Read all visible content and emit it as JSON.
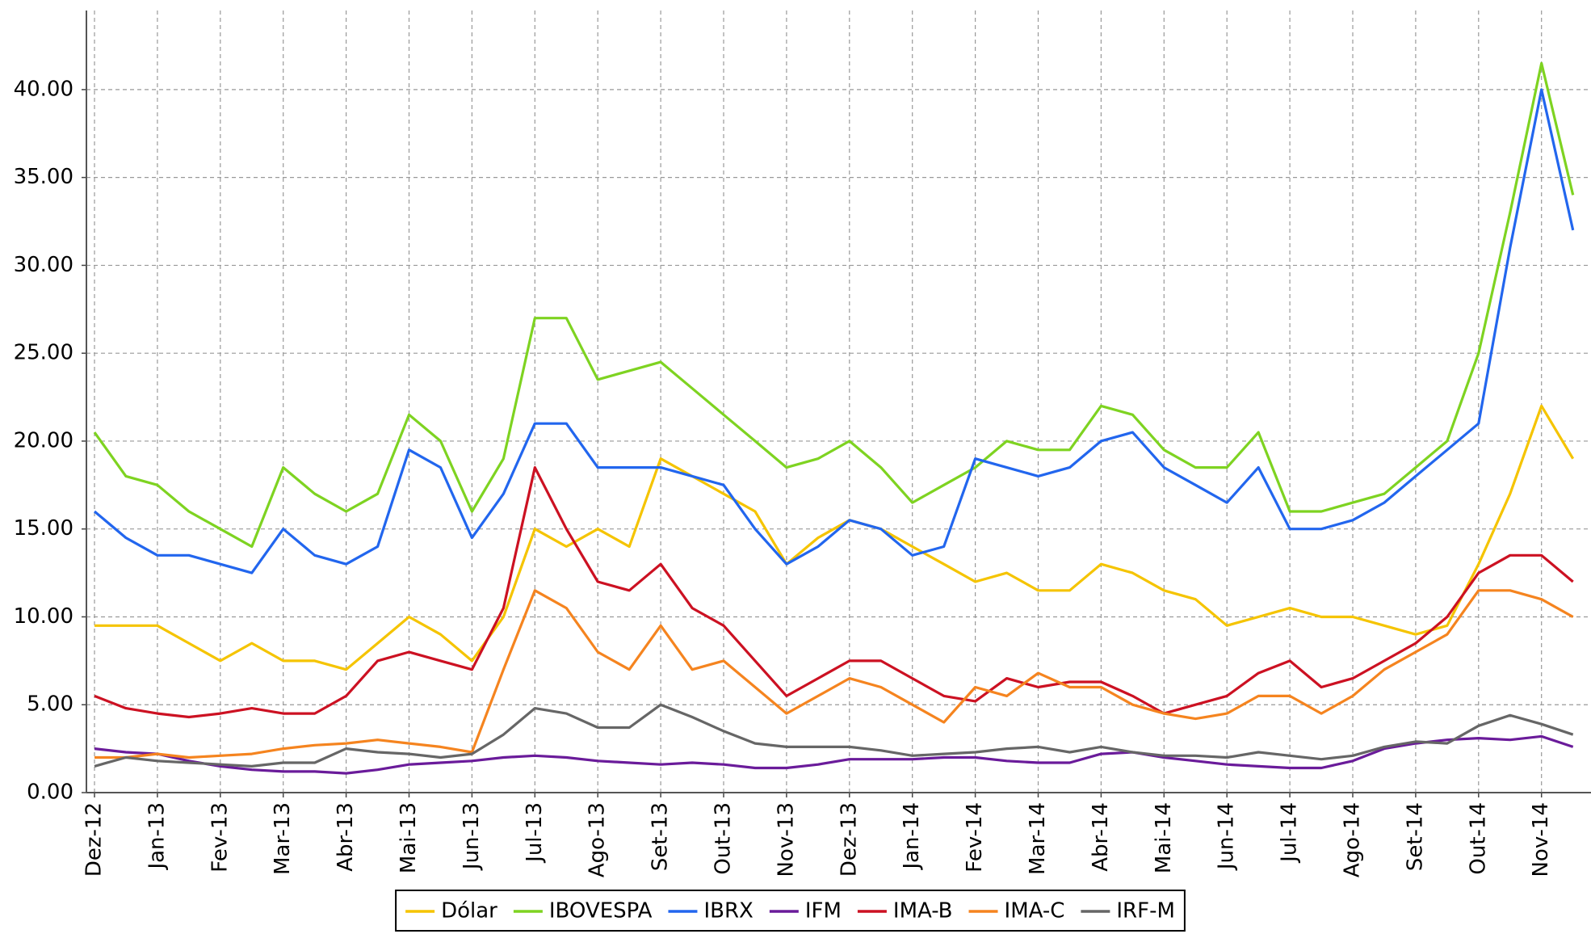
{
  "chart_data": {
    "type": "line",
    "categories": [
      "Dez-12",
      null,
      "Jan-13",
      null,
      "Fev-13",
      null,
      "Mar-13",
      null,
      "Abr-13",
      null,
      "Mai-13",
      null,
      "Jun-13",
      null,
      "Jul-13",
      null,
      "Ago-13",
      null,
      "Set-13",
      null,
      "Out-13",
      null,
      "Nov-13",
      null,
      "Dez-13",
      null,
      "Jan-14",
      null,
      "Fev-14",
      null,
      "Mar-14",
      null,
      "Abr-14",
      null,
      "Mai-14",
      null,
      "Jun-14",
      null,
      "Jul-14",
      null,
      "Ago-14",
      null,
      "Set-14",
      null,
      "Out-14",
      null,
      "Nov-14",
      null
    ],
    "series": [
      {
        "name": "Dólar",
        "color": "#f5c400",
        "values": [
          9.5,
          9.5,
          9.5,
          8.5,
          7.5,
          8.5,
          7.5,
          7.5,
          7.0,
          8.5,
          10,
          9,
          7.5,
          10,
          15,
          14,
          15,
          14,
          19,
          18,
          17,
          16,
          13,
          14.5,
          15.5,
          15,
          14,
          13,
          12,
          12.5,
          11.5,
          11.5,
          13,
          12.5,
          11.5,
          11,
          9.5,
          10,
          10.5,
          10,
          10,
          9.5,
          9,
          9.5,
          13,
          17,
          22,
          19
        ]
      },
      {
        "name": "IBOVESPA",
        "color": "#7ed321",
        "values": [
          20.5,
          18,
          17.5,
          16,
          15,
          14,
          18.5,
          17,
          16,
          17,
          21.5,
          20,
          16,
          19,
          27,
          27,
          23.5,
          24,
          24.5,
          23,
          21.5,
          20,
          18.5,
          19,
          20,
          18.5,
          16.5,
          17.5,
          18.5,
          20,
          19.5,
          19.5,
          22,
          21.5,
          19.5,
          18.5,
          18.5,
          20.5,
          16,
          16,
          16.5,
          17,
          18.5,
          20,
          25,
          33,
          41.5,
          34
        ]
      },
      {
        "name": "IBRX",
        "color": "#2266ee",
        "values": [
          16,
          14.5,
          13.5,
          13.5,
          13,
          12.5,
          15,
          13.5,
          13,
          14,
          19.5,
          18.5,
          14.5,
          17,
          21,
          21,
          18.5,
          18.5,
          18.5,
          18,
          17.5,
          15,
          13,
          14,
          15.5,
          15,
          13.5,
          14,
          19,
          18.5,
          18,
          18.5,
          20,
          20.5,
          18.5,
          17.5,
          16.5,
          18.5,
          15,
          15,
          15.5,
          16.5,
          18,
          19.5,
          21,
          31,
          40,
          32
        ]
      },
      {
        "name": "IFM",
        "color": "#6a1b9a",
        "values": [
          2.5,
          2.3,
          2.2,
          1.8,
          1.5,
          1.3,
          1.2,
          1.2,
          1.1,
          1.3,
          1.6,
          1.7,
          1.8,
          2.0,
          2.1,
          2.0,
          1.8,
          1.7,
          1.6,
          1.7,
          1.6,
          1.4,
          1.4,
          1.6,
          1.9,
          1.9,
          1.9,
          2.0,
          2.0,
          1.8,
          1.7,
          1.7,
          2.2,
          2.3,
          2.0,
          1.8,
          1.6,
          1.5,
          1.4,
          1.4,
          1.8,
          2.5,
          2.8,
          3.0,
          3.1,
          3.0,
          3.2,
          2.6
        ]
      },
      {
        "name": "IMA-B",
        "color": "#cc1122",
        "values": [
          5.5,
          4.8,
          4.5,
          4.3,
          4.5,
          4.8,
          4.5,
          4.5,
          5.5,
          7.5,
          8.0,
          7.5,
          7.0,
          10.5,
          18.5,
          15,
          12,
          11.5,
          13,
          10.5,
          9.5,
          7.5,
          5.5,
          6.5,
          7.5,
          7.5,
          6.5,
          5.5,
          5.2,
          6.5,
          6,
          6.3,
          6.3,
          5.5,
          4.5,
          5,
          5.5,
          6.8,
          7.5,
          6,
          6.5,
          7.5,
          8.5,
          10,
          12.5,
          13.5,
          13.5,
          12
        ]
      },
      {
        "name": "IMA-C",
        "color": "#f5841f",
        "values": [
          2.0,
          2.0,
          2.2,
          2.0,
          2.1,
          2.2,
          2.5,
          2.7,
          2.8,
          3.0,
          2.8,
          2.6,
          2.3,
          7,
          11.5,
          10.5,
          8,
          7,
          9.5,
          7,
          7.5,
          6,
          4.5,
          5.5,
          6.5,
          6,
          5,
          4,
          6,
          5.5,
          6.8,
          6,
          6,
          5,
          4.5,
          4.2,
          4.5,
          5.5,
          5.5,
          4.5,
          5.5,
          7,
          8,
          9,
          11.5,
          11.5,
          11,
          10
        ]
      },
      {
        "name": "IRF-M",
        "color": "#666666",
        "values": [
          1.5,
          2.0,
          1.8,
          1.7,
          1.6,
          1.5,
          1.7,
          1.7,
          2.5,
          2.3,
          2.2,
          2.0,
          2.2,
          3.3,
          4.8,
          4.5,
          3.7,
          3.7,
          5,
          4.3,
          3.5,
          2.8,
          2.6,
          2.6,
          2.6,
          2.4,
          2.1,
          2.2,
          2.3,
          2.5,
          2.6,
          2.3,
          2.6,
          2.3,
          2.1,
          2.1,
          2.0,
          2.3,
          2.1,
          1.9,
          2.1,
          2.6,
          2.9,
          2.8,
          3.8,
          4.4,
          3.9,
          3.3
        ]
      }
    ],
    "ylim": [
      0,
      44.5
    ],
    "yticks": [
      {
        "value": 0,
        "label": "0.00"
      },
      {
        "value": 5,
        "label": "5.00"
      },
      {
        "value": 10,
        "label": "10.00"
      },
      {
        "value": 15,
        "label": "15.00"
      },
      {
        "value": 20,
        "label": "20.00"
      },
      {
        "value": 25,
        "label": "25.00"
      },
      {
        "value": 30,
        "label": "30.00"
      },
      {
        "value": 35,
        "label": "35.00"
      },
      {
        "value": 40,
        "label": "40.00"
      }
    ],
    "grid": true,
    "legend": "bottom"
  }
}
